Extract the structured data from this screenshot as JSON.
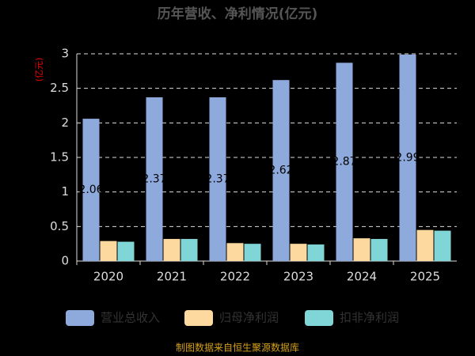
{
  "chart_data": {
    "type": "bar",
    "title": "历年营收、净利情况(亿元)",
    "y_label": "(亿元)",
    "categories": [
      "2020",
      "2021",
      "2022",
      "2023",
      "2024",
      "2025"
    ],
    "series": [
      {
        "name": "营业总收入",
        "color": "#8eaadc",
        "values": [
          2.06,
          2.37,
          2.37,
          2.62,
          2.87,
          2.99
        ]
      },
      {
        "name": "归母净利润",
        "color": "#fdd9a0",
        "values": [
          0.29,
          0.32,
          0.26,
          0.25,
          0.33,
          0.45
        ]
      },
      {
        "name": "扣非净利润",
        "color": "#80d6d6",
        "values": [
          0.28,
          0.32,
          0.25,
          0.24,
          0.32,
          0.44
        ]
      }
    ],
    "ylim": [
      0,
      3
    ],
    "yticks": [
      0,
      0.5,
      1,
      1.5,
      2,
      2.5,
      3
    ],
    "grid": true,
    "source": "制图数据来自恒生聚源数据库"
  }
}
